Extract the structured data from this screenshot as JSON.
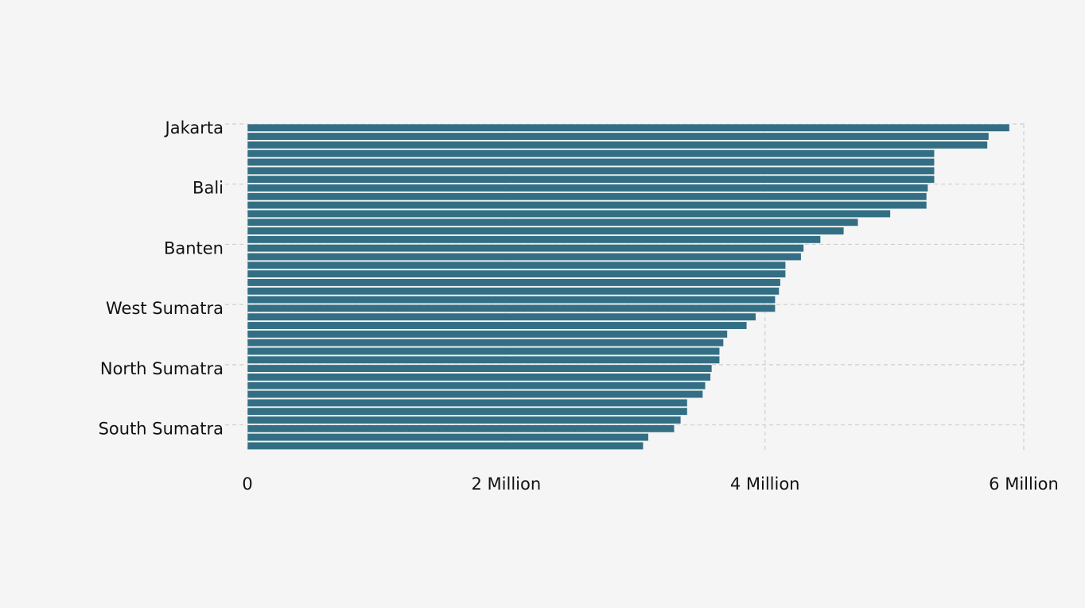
{
  "chart_data": {
    "type": "bar",
    "orientation": "horizontal",
    "title": "",
    "xlabel": "",
    "ylabel": "",
    "xlim": [
      0,
      6000000
    ],
    "x_ticks": [
      {
        "value": 0,
        "label": "0"
      },
      {
        "value": 2000000,
        "label": "2 Million"
      },
      {
        "value": 4000000,
        "label": "4 Million"
      },
      {
        "value": 6000000,
        "label": "6 Million"
      }
    ],
    "category_labels": [
      {
        "index": 0,
        "label": "Jakarta"
      },
      {
        "index": 7,
        "label": "Bali"
      },
      {
        "index": 14,
        "label": "Banten"
      },
      {
        "index": 21,
        "label": "West Sumatra"
      },
      {
        "index": 28,
        "label": "North Sumatra"
      },
      {
        "index": 35,
        "label": "South Sumatra"
      }
    ],
    "values": [
      5890000,
      5730000,
      5720000,
      5310000,
      5310000,
      5310000,
      5310000,
      5260000,
      5250000,
      5250000,
      4970000,
      4720000,
      4610000,
      4430000,
      4300000,
      4280000,
      4160000,
      4160000,
      4120000,
      4110000,
      4080000,
      4080000,
      3930000,
      3860000,
      3710000,
      3680000,
      3650000,
      3650000,
      3590000,
      3580000,
      3540000,
      3520000,
      3400000,
      3400000,
      3350000,
      3300000,
      3100000,
      3060000
    ],
    "bar_color": "#336f84",
    "grid": true,
    "legend": "none"
  }
}
